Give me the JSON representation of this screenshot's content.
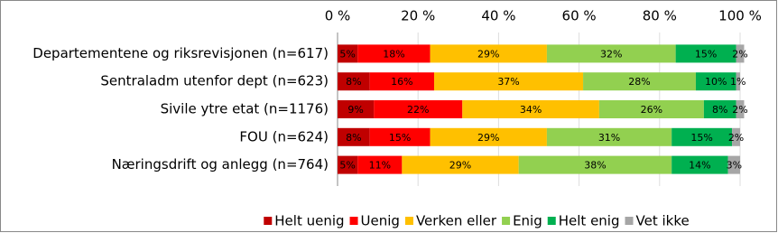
{
  "chart_data": {
    "type": "stacked-bar-horizontal",
    "categories": [
      "Departementene og riksrevisjonen (n=617)",
      "Sentraladm utenfor dept (n=623)",
      "Sivile ytre etat (n=1176)",
      "FOU (n=624)",
      "Næringsdrift og anlegg (n=764)"
    ],
    "series": [
      {
        "name": "Helt uenig",
        "color": "#c00000",
        "values": [
          5,
          8,
          9,
          8,
          5
        ],
        "value_labels": [
          "5%",
          "8%",
          "9%",
          "8%",
          "5%"
        ]
      },
      {
        "name": "Uenig",
        "color": "#ff0000",
        "values": [
          18,
          16,
          22,
          15,
          11
        ],
        "value_labels": [
          "18%",
          "16%",
          "22%",
          "15%",
          "11%"
        ]
      },
      {
        "name": "Verken eller",
        "color": "#ffc000",
        "values": [
          29,
          37,
          34,
          29,
          29
        ],
        "value_labels": [
          "29%",
          "37%",
          "34%",
          "29%",
          "29%"
        ]
      },
      {
        "name": "Enig",
        "color": "#92d050",
        "values": [
          32,
          28,
          26,
          31,
          38
        ],
        "value_labels": [
          "32%",
          "28%",
          "26%",
          "31%",
          "38%"
        ]
      },
      {
        "name": "Helt enig",
        "color": "#00b050",
        "values": [
          15,
          10,
          8,
          15,
          14
        ],
        "value_labels": [
          "15%",
          "10%",
          "8%",
          "15%",
          "14%"
        ]
      },
      {
        "name": "Vet ikke",
        "color": "#a6a6a6",
        "values": [
          2,
          1,
          2,
          2,
          3
        ],
        "value_labels": [
          "2%",
          "1%",
          "2%",
          "2%",
          "3%"
        ]
      }
    ],
    "xlim": [
      0,
      100
    ],
    "xticks": [
      {
        "value": 0,
        "label": "0 %"
      },
      {
        "value": 20,
        "label": "20 %"
      },
      {
        "value": 40,
        "label": "40 %"
      },
      {
        "value": 60,
        "label": "60 %"
      },
      {
        "value": 80,
        "label": "80 %"
      },
      {
        "value": 100,
        "label": "100 %"
      }
    ],
    "legend": "bottom"
  }
}
